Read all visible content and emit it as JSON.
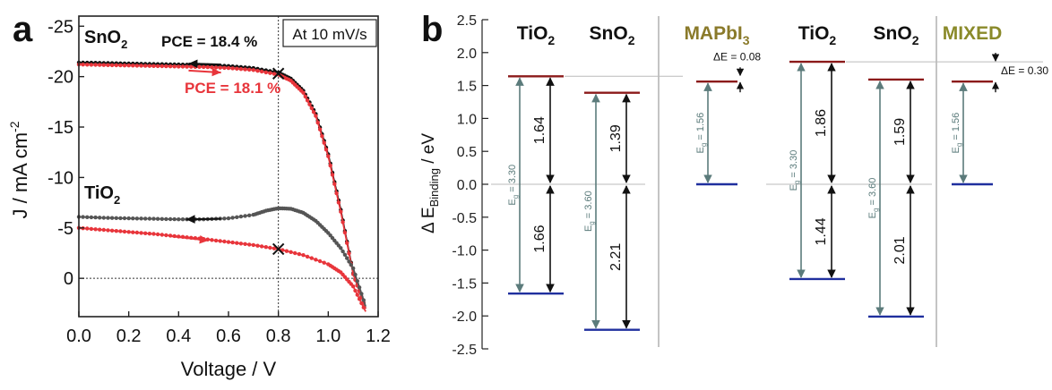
{
  "chart_data": [
    {
      "type": "line",
      "panel_label": "a",
      "xlabel": "Voltage / V",
      "ylabel_main": "J / mA cm",
      "ylabel_sup": "-2",
      "xlim": [
        0.0,
        1.2
      ],
      "ylim": [
        -26,
        3.8
      ],
      "xticks": [
        "0.0",
        "0.2",
        "0.4",
        "0.6",
        "0.8",
        "1.0",
        "1.2"
      ],
      "xtick_values": [
        0.0,
        0.2,
        0.4,
        0.6,
        0.8,
        1.0,
        1.2
      ],
      "yticks": [
        "-25",
        "-20",
        "-15",
        "-10",
        "-5",
        "0"
      ],
      "ytick_values": [
        -25,
        -20,
        -15,
        -10,
        -5,
        0
      ],
      "annotations": {
        "scan_rate": "At 10 mV/s",
        "sno2_label": "SnO",
        "sno2_sub": "2",
        "pce_black": "PCE = 18.4 %",
        "pce_red": "PCE = 18.1 %",
        "tio2_label": "TiO",
        "tio2_sub": "2"
      },
      "mpp_markers": [
        {
          "x": 0.8,
          "y": -20.3
        },
        {
          "x": 0.8,
          "y": -2.9
        }
      ],
      "series": [
        {
          "group": "SnO2",
          "color": "#111111",
          "x": [
            0.0,
            0.1,
            0.2,
            0.3,
            0.4,
            0.5,
            0.6,
            0.7,
            0.8,
            0.85,
            0.9,
            0.95,
            1.0,
            1.05,
            1.1,
            1.15
          ],
          "y": [
            -21.4,
            -21.35,
            -21.3,
            -21.25,
            -21.2,
            -21.15,
            -21.05,
            -20.85,
            -20.4,
            -19.8,
            -18.6,
            -16.3,
            -12.3,
            -6.8,
            -0.5,
            3.0
          ]
        },
        {
          "group": "SnO2",
          "color": "#e8353b",
          "x": [
            0.0,
            0.1,
            0.2,
            0.3,
            0.4,
            0.5,
            0.6,
            0.7,
            0.8,
            0.85,
            0.9,
            0.95,
            1.0,
            1.05,
            1.1,
            1.15
          ],
          "y": [
            -21.2,
            -21.15,
            -21.1,
            -21.05,
            -21.0,
            -20.95,
            -20.85,
            -20.65,
            -20.2,
            -19.6,
            -18.4,
            -16.1,
            -12.1,
            -6.6,
            -0.4,
            3.0
          ]
        },
        {
          "group": "TiO2",
          "color": "#555555",
          "x": [
            0.0,
            0.1,
            0.2,
            0.3,
            0.4,
            0.5,
            0.6,
            0.7,
            0.75,
            0.8,
            0.85,
            0.9,
            0.95,
            1.0,
            1.05,
            1.1,
            1.15
          ],
          "y": [
            -6.1,
            -6.0,
            -5.95,
            -5.9,
            -5.85,
            -5.85,
            -5.95,
            -6.3,
            -6.7,
            -6.95,
            -6.9,
            -6.5,
            -5.7,
            -4.5,
            -3.0,
            -1.0,
            2.8
          ]
        },
        {
          "group": "TiO2",
          "color": "#e8353b",
          "x": [
            0.0,
            0.1,
            0.2,
            0.3,
            0.4,
            0.5,
            0.6,
            0.7,
            0.8,
            0.9,
            1.0,
            1.05,
            1.1,
            1.15
          ],
          "y": [
            -5.0,
            -4.8,
            -4.6,
            -4.4,
            -4.15,
            -3.9,
            -3.6,
            -3.3,
            -2.9,
            -2.3,
            -1.4,
            -0.6,
            0.8,
            3.3
          ]
        }
      ],
      "scan_arrows": [
        {
          "color": "#111111",
          "from": [
            0.57,
            -21.2
          ],
          "to": [
            0.44,
            -21.3
          ]
        },
        {
          "color": "#e8353b",
          "from": [
            0.44,
            -20.6
          ],
          "to": [
            0.57,
            -20.4
          ]
        },
        {
          "color": "#111111",
          "from": [
            0.57,
            -5.9
          ],
          "to": [
            0.43,
            -5.85
          ]
        },
        {
          "color": "#e8353b",
          "from": [
            0.36,
            -4.2
          ],
          "to": [
            0.52,
            -3.75
          ]
        }
      ]
    },
    {
      "type": "diagram",
      "panel_label": "b",
      "ylabel": "Δ E",
      "ylabel_sub": "Binding",
      "ylabel_suffix": " / eV",
      "ylim": [
        -2.5,
        2.5
      ],
      "yticks": [
        "2.5",
        "2.0",
        "1.5",
        "1.0",
        "0.5",
        "0.0",
        "-0.5",
        "-1.0",
        "-1.5",
        "-2.0",
        "-2.5"
      ],
      "ytick_values": [
        2.5,
        2.0,
        1.5,
        1.0,
        0.5,
        0.0,
        -0.5,
        -1.0,
        -1.5,
        -2.0,
        -2.5
      ],
      "colors": {
        "cb": "#8b1a1a",
        "vb": "#1f2f9e",
        "gap": "#5b7b7b",
        "perovskite": "#8a7a2a",
        "mixed": "#8a8a2a"
      },
      "groups": [
        {
          "headers": [
            {
              "label": "TiO",
              "sub": "2",
              "color": "#111111"
            },
            {
              "label": "SnO",
              "sub": "2",
              "color": "#111111"
            },
            {
              "label": "MAPbI",
              "sub": "3",
              "color": "#8a7a2a"
            }
          ],
          "columns": [
            {
              "cb": 1.64,
              "vb": -1.66,
              "eg": "E",
              "eg_sub": "g",
              "eg_val": " = 3.30",
              "upper": "1.64",
              "lower": "1.66"
            },
            {
              "cb": 1.39,
              "vb": -2.21,
              "eg": "E",
              "eg_sub": "g",
              "eg_val": " = 3.60",
              "upper": "1.39",
              "lower": "2.21"
            },
            {
              "cb": 1.56,
              "vb": 0.0,
              "eg": "E",
              "eg_sub": "g",
              "eg_val": " = 1.56"
            }
          ],
          "delta_e": "ΔE = 0.08"
        },
        {
          "headers": [
            {
              "label": "TiO",
              "sub": "2",
              "color": "#111111"
            },
            {
              "label": "SnO",
              "sub": "2",
              "color": "#111111"
            },
            {
              "label": "MIXED",
              "sub": "",
              "color": "#8a8a2a"
            }
          ],
          "columns": [
            {
              "cb": 1.86,
              "vb": -1.44,
              "eg": "E",
              "eg_sub": "g",
              "eg_val": " = 3.30",
              "upper": "1.86",
              "lower": "1.44"
            },
            {
              "cb": 1.59,
              "vb": -2.01,
              "eg": "E",
              "eg_sub": "g",
              "eg_val": " = 3.60",
              "upper": "1.59",
              "lower": "2.01"
            },
            {
              "cb": 1.56,
              "vb": 0.0,
              "eg": "E",
              "eg_sub": "g",
              "eg_val": " = 1.56"
            }
          ],
          "delta_e": "ΔE = 0.30"
        }
      ]
    }
  ]
}
